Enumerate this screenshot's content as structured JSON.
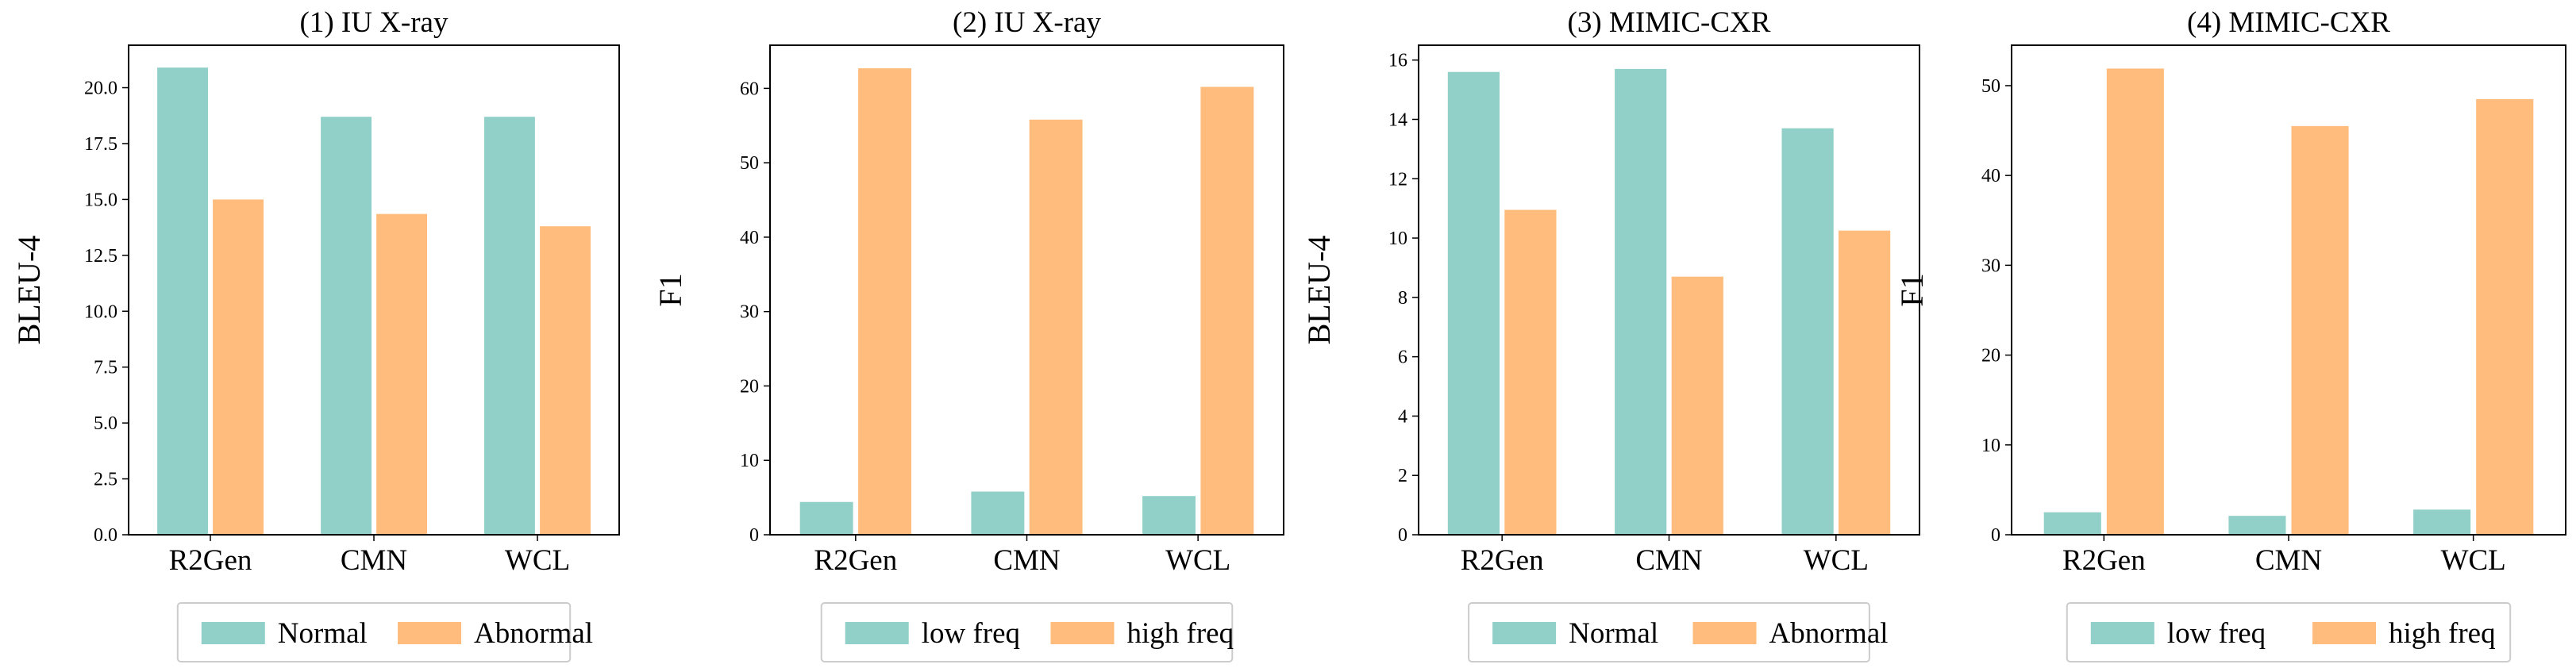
{
  "colors": {
    "series_a": "#91d0c9",
    "series_b": "#ffbc7c"
  },
  "chart_data": [
    {
      "type": "bar",
      "title": "(1) IU X-ray",
      "ylabel": "BLEU-4",
      "xlabel": "",
      "categories": [
        "R2Gen",
        "CMN",
        "WCL"
      ],
      "series": [
        {
          "name": "Normal",
          "values": [
            20.9,
            18.7,
            18.7
          ]
        },
        {
          "name": "Abnormal",
          "values": [
            15.0,
            14.35,
            13.8
          ]
        }
      ],
      "ylim": [
        0,
        21.9
      ],
      "yticks": [
        0,
        2.5,
        5,
        7.5,
        10,
        12.5,
        15,
        17.5,
        20
      ],
      "ytick_labels": [
        "0.0",
        "2.5",
        "5.0",
        "7.5",
        "10.0",
        "12.5",
        "15.0",
        "17.5",
        "20.0"
      ],
      "legend": "bottom"
    },
    {
      "type": "bar",
      "title": "(2) IU X-ray",
      "ylabel": "F1",
      "xlabel": "",
      "categories": [
        "R2Gen",
        "CMN",
        "WCL"
      ],
      "series": [
        {
          "name": "low freq",
          "values": [
            4.4,
            5.8,
            5.2
          ]
        },
        {
          "name": "high freq",
          "values": [
            62.7,
            55.8,
            60.2
          ]
        }
      ],
      "ylim": [
        0,
        65.8
      ],
      "yticks": [
        0,
        10,
        20,
        30,
        40,
        50,
        60
      ],
      "ytick_labels": [
        "0",
        "10",
        "20",
        "30",
        "40",
        "50",
        "60"
      ],
      "legend": "bottom"
    },
    {
      "type": "bar",
      "title": "(3) MIMIC-CXR",
      "ylabel": "BLEU-4",
      "xlabel": "",
      "categories": [
        "R2Gen",
        "CMN",
        "WCL"
      ],
      "series": [
        {
          "name": "Normal",
          "values": [
            15.6,
            15.7,
            13.7
          ]
        },
        {
          "name": "Abnormal",
          "values": [
            10.95,
            8.7,
            10.25
          ]
        }
      ],
      "ylim": [
        0,
        16.5
      ],
      "yticks": [
        0,
        2,
        4,
        6,
        8,
        10,
        12,
        14,
        16
      ],
      "ytick_labels": [
        "0",
        "2",
        "4",
        "6",
        "8",
        "10",
        "12",
        "14",
        "16"
      ],
      "legend": "bottom"
    },
    {
      "type": "bar",
      "title": "(4) MIMIC-CXR",
      "ylabel": "F1",
      "xlabel": "",
      "categories": [
        "R2Gen",
        "CMN",
        "WCL"
      ],
      "series": [
        {
          "name": "low freq",
          "values": [
            2.5,
            2.1,
            2.8
          ]
        },
        {
          "name": "high freq",
          "values": [
            51.9,
            45.5,
            48.5
          ]
        }
      ],
      "ylim": [
        0,
        54.5
      ],
      "yticks": [
        0,
        10,
        20,
        30,
        40,
        50
      ],
      "ytick_labels": [
        "0",
        "10",
        "20",
        "30",
        "40",
        "50"
      ],
      "legend": "bottom"
    }
  ]
}
